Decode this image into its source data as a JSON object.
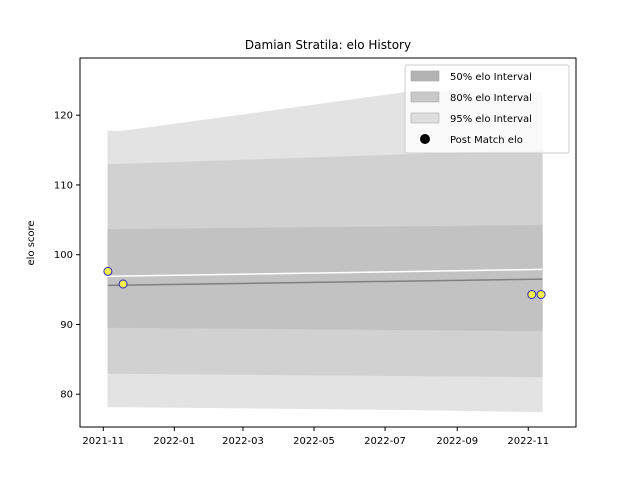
{
  "chart_data": {
    "type": "area",
    "title": "Damian Stratila: elo History",
    "xlabel": "",
    "ylabel": "elo score",
    "xlim": [
      "2021-10-12",
      "2022-12-12"
    ],
    "ylim": [
      75.3,
      128.2
    ],
    "x_ticks": [
      "2021-11",
      "2022-01",
      "2022-03",
      "2022-05",
      "2022-07",
      "2022-09",
      "2022-11"
    ],
    "y_ticks": [
      80,
      90,
      100,
      110,
      120
    ],
    "grid": false,
    "legend_position": "top-right",
    "legend": [
      {
        "label": "50% elo Interval",
        "marker": "patch",
        "color": "#b3b3b3"
      },
      {
        "label": "80% elo Interval",
        "marker": "patch",
        "color": "#c9c9c9"
      },
      {
        "label": "95% elo Interval",
        "marker": "patch",
        "color": "#dedede"
      },
      {
        "label": "Post Match elo",
        "marker": "circle",
        "color": "#000000"
      }
    ],
    "bands": [
      {
        "name": "95% elo Interval",
        "color": "#e3e3e3",
        "x": [
          "2021-11-05",
          "2021-11-18",
          "2022-07-20",
          "2022-11-13"
        ],
        "upper": [
          117.7,
          117.7,
          123.3,
          123.3
        ],
        "lower": [
          78.2,
          78.2,
          77.8,
          77.5
        ]
      },
      {
        "name": "80% elo Interval",
        "color": "#d1d1d1",
        "x": [
          "2021-11-05",
          "2022-11-13"
        ],
        "upper": [
          112.9,
          115.0
        ],
        "lower": [
          83.0,
          82.5
        ]
      },
      {
        "name": "50% elo Interval",
        "color": "#c2c2c2",
        "x": [
          "2021-11-05",
          "2022-11-13"
        ],
        "upper": [
          103.6,
          104.2
        ],
        "lower": [
          89.6,
          89.1
        ]
      }
    ],
    "lines": [
      {
        "name": "",
        "color": "#808080",
        "x": [
          "2021-11-05",
          "2022-11-13"
        ],
        "y": [
          95.6,
          96.5
        ]
      },
      {
        "name": "",
        "color": "#ffffff",
        "x": [
          "2021-11-05",
          "2022-11-13"
        ],
        "y": [
          96.9,
          97.9
        ]
      }
    ],
    "points": {
      "name": "Post Match elo",
      "fill": "#f5ef4a",
      "edge": "#2b2bb8",
      "x": [
        "2021-11-05",
        "2021-11-18",
        "2022-11-04",
        "2022-11-12"
      ],
      "y": [
        97.6,
        95.8,
        94.3,
        94.3
      ]
    }
  }
}
